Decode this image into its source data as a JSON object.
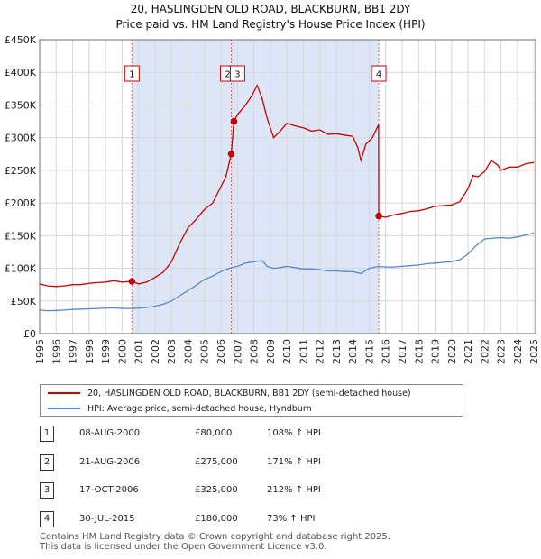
{
  "chart_data": {
    "type": "line",
    "title": "20, HASLINGDEN OLD ROAD, BLACKBURN, BB1 2DY",
    "subtitle": "Price paid vs. HM Land Registry's House Price Index (HPI)",
    "xlim": [
      1995,
      2025.1
    ],
    "ylim": [
      0,
      450000
    ],
    "x_ticks": [
      1995,
      1996,
      1997,
      1998,
      1999,
      2000,
      2001,
      2002,
      2003,
      2004,
      2005,
      2006,
      2007,
      2008,
      2009,
      2010,
      2011,
      2012,
      2013,
      2014,
      2015,
      2016,
      2017,
      2018,
      2019,
      2020,
      2021,
      2022,
      2023,
      2024,
      2025
    ],
    "y_ticks": [
      {
        "value": 0,
        "label": "£0"
      },
      {
        "value": 50000,
        "label": "£50K"
      },
      {
        "value": 100000,
        "label": "£100K"
      },
      {
        "value": 150000,
        "label": "£150K"
      },
      {
        "value": 200000,
        "label": "£200K"
      },
      {
        "value": 250000,
        "label": "£250K"
      },
      {
        "value": 300000,
        "label": "£300K"
      },
      {
        "value": 350000,
        "label": "£350K"
      },
      {
        "value": 400000,
        "label": "£400K"
      },
      {
        "value": 450000,
        "label": "£450K"
      }
    ],
    "shaded_region": [
      2000.6,
      2015.58
    ],
    "series": [
      {
        "name": "20, HASLINGDEN OLD ROAD, BLACKBURN, BB1 2DY (semi-detached house)",
        "color": "#cc0000",
        "x": [
          1995,
          1995.5,
          1996,
          1996.5,
          1997,
          1997.5,
          1998,
          1998.5,
          1999,
          1999.5,
          2000,
          2000.6,
          2001,
          2001.5,
          2002,
          2002.5,
          2003,
          2003.5,
          2004,
          2004.5,
          2005,
          2005.5,
          2006,
          2006.3,
          2006.63,
          2006.79,
          2007,
          2007.5,
          2007.9,
          2008.2,
          2008.5,
          2008.8,
          2009.2,
          2009.6,
          2010,
          2010.5,
          2011,
          2011.5,
          2012,
          2012.5,
          2013,
          2013.5,
          2014,
          2014.3,
          2014.5,
          2014.8,
          2015.2,
          2015.57,
          2015.58,
          2016,
          2016.5,
          2017,
          2017.5,
          2018,
          2018.5,
          2019,
          2019.5,
          2020,
          2020.5,
          2021,
          2021.3,
          2021.6,
          2022,
          2022.4,
          2022.8,
          2023,
          2023.5,
          2024,
          2024.5,
          2025
        ],
        "values": [
          76000,
          73000,
          72000,
          73000,
          75000,
          75000,
          77000,
          78000,
          79000,
          81000,
          79000,
          80000,
          76000,
          79000,
          86000,
          94000,
          110000,
          138000,
          162000,
          175000,
          190000,
          200000,
          225000,
          240000,
          275000,
          325000,
          335000,
          350000,
          365000,
          380000,
          360000,
          330000,
          300000,
          310000,
          322000,
          318000,
          315000,
          310000,
          312000,
          305000,
          306000,
          304000,
          302000,
          285000,
          265000,
          290000,
          300000,
          320000,
          180000,
          178000,
          182000,
          184000,
          187000,
          188000,
          191000,
          195000,
          196000,
          197000,
          202000,
          222000,
          242000,
          240000,
          248000,
          265000,
          258000,
          250000,
          255000,
          255000,
          260000,
          262000
        ]
      },
      {
        "name": "HPI: Average price, semi-detached house, Hyndburn",
        "color": "#5588cc",
        "x": [
          1995,
          1995.5,
          1996,
          1996.5,
          1997,
          1997.5,
          1998,
          1998.5,
          1999,
          1999.5,
          2000,
          2000.6,
          2001,
          2001.5,
          2002,
          2002.5,
          2003,
          2003.5,
          2004,
          2004.5,
          2005,
          2005.5,
          2006,
          2006.5,
          2007,
          2007.5,
          2008,
          2008.5,
          2008.8,
          2009.2,
          2009.6,
          2010,
          2010.5,
          2011,
          2011.5,
          2012,
          2012.5,
          2013,
          2013.5,
          2014,
          2014.5,
          2015,
          2015.58,
          2016,
          2016.5,
          2017,
          2017.5,
          2018,
          2018.5,
          2019,
          2019.5,
          2020,
          2020.5,
          2021,
          2021.5,
          2022,
          2022.5,
          2023,
          2023.5,
          2024,
          2024.5,
          2025
        ],
        "values": [
          36000,
          35000,
          35500,
          36000,
          37000,
          37500,
          38000,
          38500,
          39000,
          39500,
          38500,
          38500,
          39000,
          40000,
          42000,
          45000,
          50000,
          58000,
          66000,
          74000,
          83000,
          88000,
          95000,
          100000,
          103000,
          108000,
          110000,
          112000,
          103000,
          100000,
          101000,
          103000,
          101000,
          99000,
          99000,
          98000,
          96000,
          96000,
          95000,
          95000,
          92000,
          100000,
          103000,
          102000,
          102000,
          103000,
          104000,
          105000,
          107000,
          108000,
          109000,
          110000,
          113000,
          122000,
          135000,
          145000,
          146000,
          147000,
          146000,
          148000,
          151000,
          154000
        ]
      }
    ],
    "markers": [
      {
        "id": "1",
        "x": 2000.6,
        "y": 80000
      },
      {
        "id": "2",
        "x": 2006.63,
        "y": 275000
      },
      {
        "id": "3",
        "x": 2006.79,
        "y": 325000
      },
      {
        "id": "4",
        "x": 2015.58,
        "y": 180000
      }
    ]
  },
  "legend": {
    "property_label": "20, HASLINGDEN OLD ROAD, BLACKBURN, BB1 2DY (semi-detached house)",
    "hpi_label": "HPI: Average price, semi-detached house, Hyndburn"
  },
  "sales": [
    {
      "num": "1",
      "date": "08-AUG-2000",
      "price": "£80,000",
      "hpi": "108% ↑ HPI"
    },
    {
      "num": "2",
      "date": "21-AUG-2006",
      "price": "£275,000",
      "hpi": "171% ↑ HPI"
    },
    {
      "num": "3",
      "date": "17-OCT-2006",
      "price": "£325,000",
      "hpi": "212% ↑ HPI"
    },
    {
      "num": "4",
      "date": "30-JUL-2015",
      "price": "£180,000",
      "hpi": "73% ↑ HPI"
    }
  ],
  "footer": {
    "line1": "Contains HM Land Registry data © Crown copyright and database right 2025.",
    "line2": "This data is licensed under the Open Government Licence v3.0."
  }
}
